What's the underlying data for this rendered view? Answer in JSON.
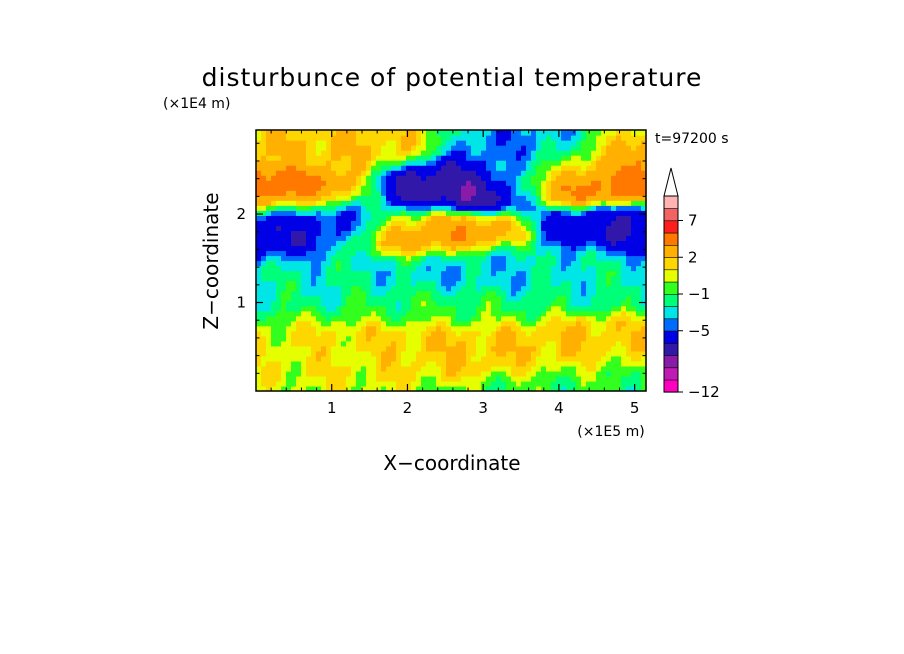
{
  "chart_data": {
    "type": "heatmap",
    "title": "disturbunce of potential temperature",
    "time_label": "t=97200 s",
    "xlabel": "X−coordinate",
    "ylabel": "Z−coordinate",
    "x_unit": "(×1E5 m)",
    "z_unit": "(×1E4 m)",
    "xlim": [
      0,
      5.15
    ],
    "zlim": [
      0,
      2.95
    ],
    "x_ticks": [
      "1",
      "2",
      "3",
      "4",
      "5"
    ],
    "z_ticks": [
      "1",
      "2"
    ],
    "colorbar": {
      "levels": [
        -12,
        -11,
        -9,
        -7,
        -5,
        -3,
        -2,
        -1,
        0,
        1,
        2,
        3,
        5,
        7,
        9,
        11
      ],
      "tick_labels": [
        "7",
        "2",
        "−1",
        "−5",
        "−12"
      ],
      "colors": [
        "#ff00c0",
        "#c01ab4",
        "#8a1aa8",
        "#3218a8",
        "#0000e6",
        "#006cff",
        "#00e6e6",
        "#00ff78",
        "#32ff1e",
        "#e6ff00",
        "#ffd700",
        "#ffb000",
        "#ff7800",
        "#ff1e1e",
        "#f06464",
        "#ffb4b4"
      ],
      "extend": "max"
    },
    "features": [
      {
        "x": 2.5,
        "z": 2.3,
        "value": -7
      },
      {
        "x": 0.9,
        "z": 1.95,
        "value": -5
      },
      {
        "x": 0.12,
        "z": 1.75,
        "value": -5
      },
      {
        "x": 5.05,
        "z": 1.85,
        "value": -5
      },
      {
        "x": 3.75,
        "z": 2.6,
        "value": -3
      },
      {
        "x": 0.5,
        "z": 2.25,
        "value": 7
      },
      {
        "x": 4.55,
        "z": 2.4,
        "value": 7
      },
      {
        "x": 5.05,
        "z": 2.55,
        "value": 5
      },
      {
        "x": 2.2,
        "z": 1.8,
        "value": 5
      },
      {
        "x": 1.0,
        "z": 2.7,
        "value": 3
      },
      {
        "x": 2.8,
        "z": 1.35,
        "value": -2
      },
      {
        "x": 0.8,
        "z": 1.35,
        "value": -1
      },
      {
        "x": 4.2,
        "z": 1.35,
        "value": -1
      },
      {
        "x": 2.5,
        "z": 0.95,
        "value": 0
      },
      {
        "x": 2.5,
        "z": 0.55,
        "value": 3
      },
      {
        "x": 1.1,
        "z": 0.4,
        "value": 2
      },
      {
        "x": 4.2,
        "z": 0.45,
        "value": 3
      },
      {
        "x": 4.6,
        "z": 0.15,
        "value": 0
      }
    ]
  }
}
